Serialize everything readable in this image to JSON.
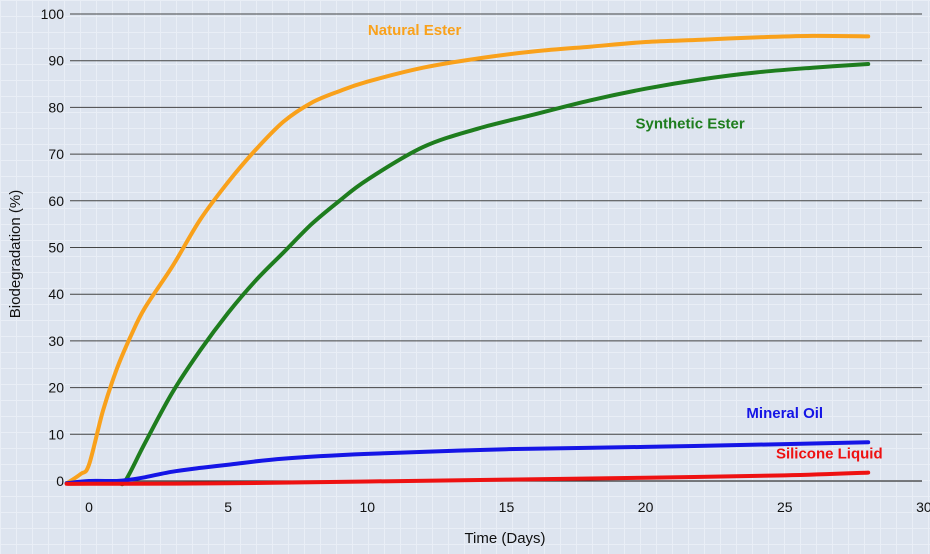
{
  "chart_data": {
    "type": "line",
    "title": "",
    "xlabel": "Time (Days)",
    "ylabel": "Biodegradation (%)",
    "xlim": [
      0,
      30
    ],
    "ylim": [
      0,
      100
    ],
    "x_ticks": [
      0,
      5,
      10,
      15,
      20,
      25,
      30
    ],
    "y_ticks": [
      0,
      10,
      20,
      30,
      40,
      50,
      60,
      70,
      80,
      90,
      100
    ],
    "grid": "horizontal",
    "legend": "inline labels",
    "series": [
      {
        "name": "Natural Ester",
        "color": "#f9a11b",
        "label_color": "#f9a11b",
        "x": [
          -0.8,
          -0.3,
          0,
          0.5,
          1,
          1.5,
          2,
          3,
          4,
          5,
          6,
          7,
          8,
          9,
          10,
          12,
          14,
          16,
          18,
          20,
          22,
          24,
          26,
          28
        ],
        "y": [
          -0.5,
          1.5,
          3.5,
          15,
          24,
          31,
          37,
          46,
          56,
          64,
          71,
          77,
          81,
          83.5,
          85.5,
          88.5,
          90.5,
          92,
          93,
          94,
          94.5,
          95,
          95.3,
          95.2
        ]
      },
      {
        "name": "Synthetic Ester",
        "color": "#1e7d1e",
        "label_color": "#1e7d1e",
        "x": [
          -0.8,
          0,
          1,
          1.3,
          2,
          3,
          4,
          5,
          6,
          7,
          8,
          9,
          10,
          12,
          14,
          16,
          18,
          20,
          22,
          24,
          26,
          28
        ],
        "y": [
          -0.5,
          -0.3,
          -0.3,
          0,
          8,
          19,
          28,
          36,
          43,
          49,
          55,
          60,
          64.5,
          71.5,
          75.5,
          78.5,
          81.5,
          84,
          86,
          87.5,
          88.5,
          89.3
        ]
      },
      {
        "name": "Mineral Oil",
        "color": "#1515e6",
        "label_color": "#1515e6",
        "x": [
          -0.8,
          0,
          1,
          1.5,
          2,
          3,
          4,
          5,
          7,
          10,
          15,
          20,
          25,
          28
        ],
        "y": [
          -0.5,
          0,
          0,
          0.3,
          0.8,
          2,
          2.8,
          3.5,
          4.8,
          5.8,
          6.8,
          7.3,
          7.9,
          8.3
        ]
      },
      {
        "name": "Silicone Liquid",
        "color": "#ee1111",
        "label_color": "#ee1111",
        "x": [
          -0.8,
          0,
          5,
          10,
          15,
          20,
          25,
          28
        ],
        "y": [
          -0.6,
          -0.6,
          -0.5,
          -0.1,
          0.3,
          0.7,
          1.2,
          1.8
        ]
      }
    ],
    "annotations": [
      {
        "text": "Natural Ester",
        "series": 0,
        "x": 11.7,
        "y": 95.5
      },
      {
        "text": "Synthetic Ester",
        "series": 1,
        "x": 21.6,
        "y": 75.5
      },
      {
        "text": "Mineral Oil",
        "series": 2,
        "x": 25,
        "y": 13.5
      },
      {
        "text": "Silicone Liquid",
        "series": 3,
        "x": 26.6,
        "y": 4.8
      }
    ]
  }
}
